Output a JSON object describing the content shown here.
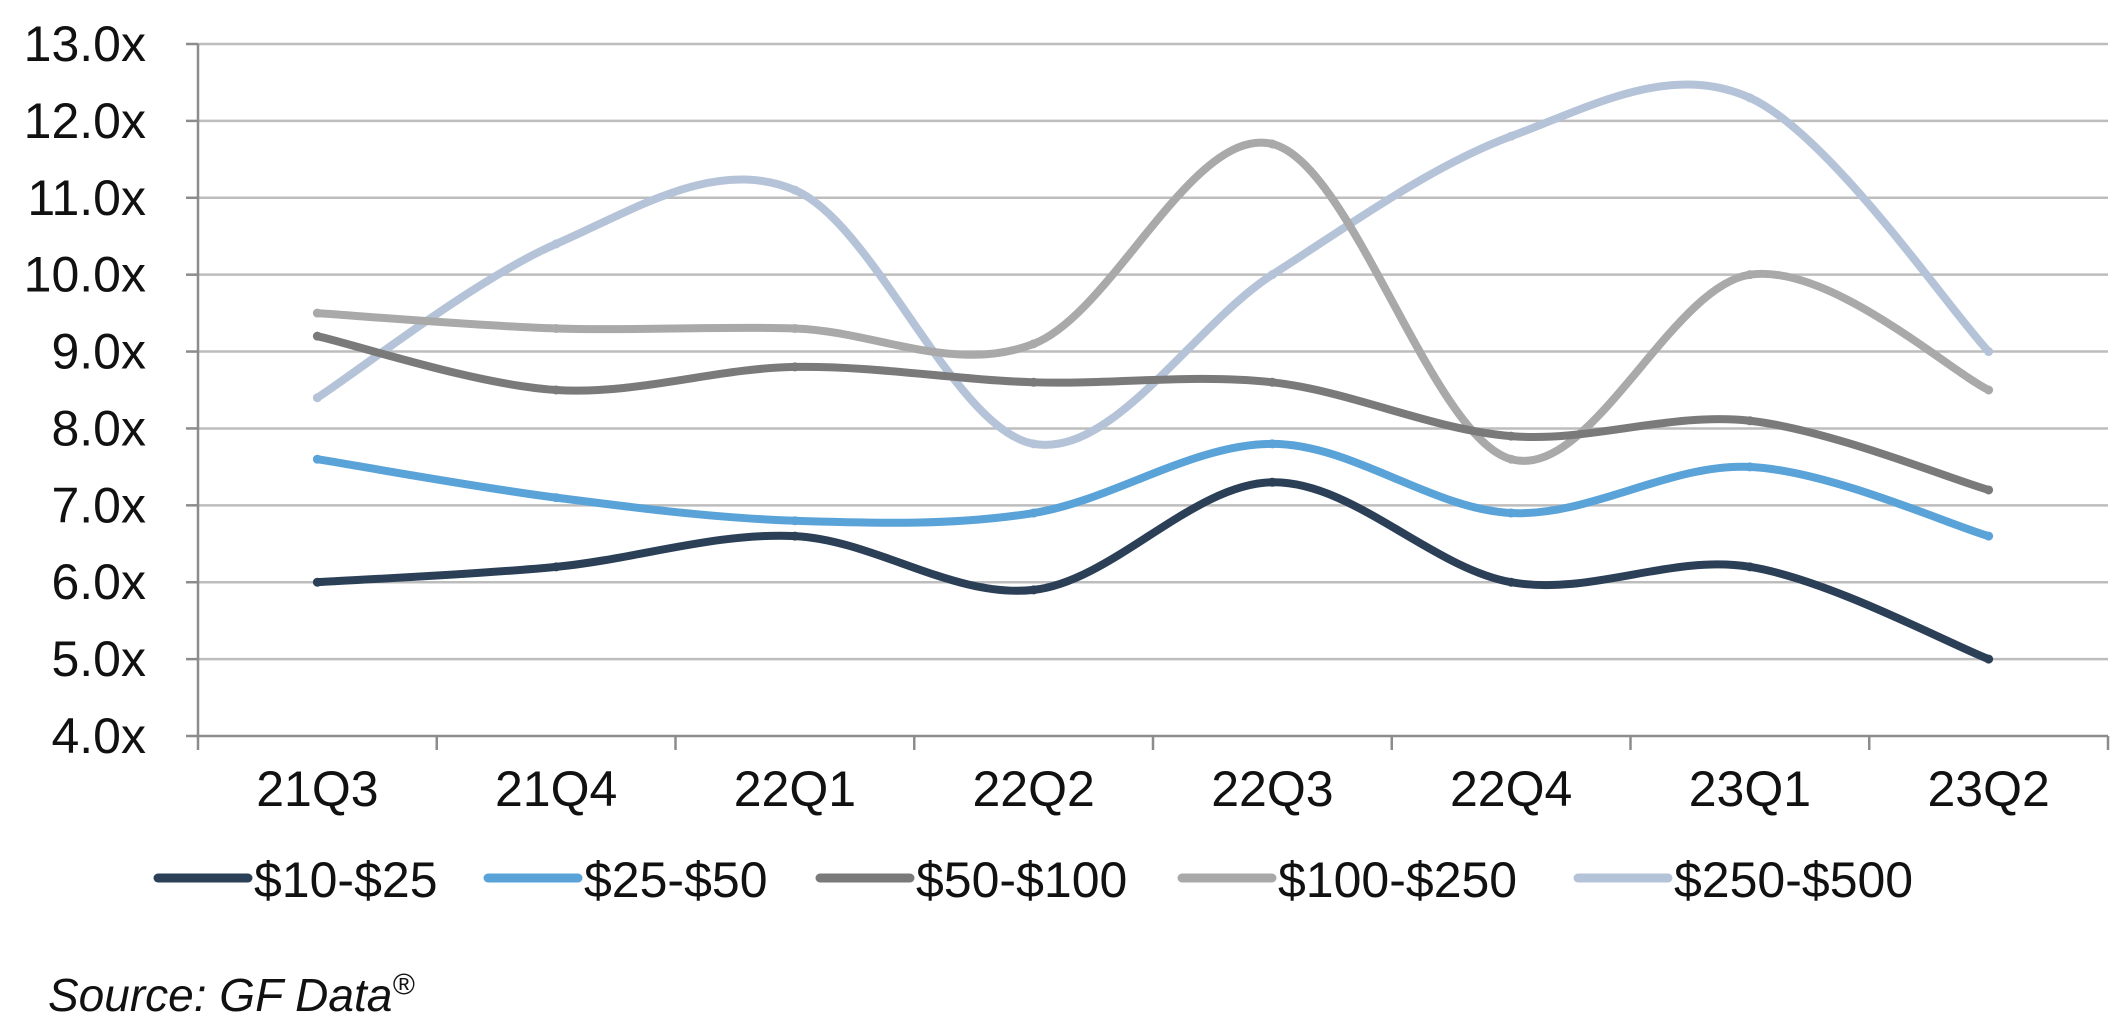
{
  "chart_data": {
    "type": "line",
    "title": "",
    "xlabel": "",
    "ylabel": "",
    "categories": [
      "21Q3",
      "21Q4",
      "22Q1",
      "22Q2",
      "22Q3",
      "22Q4",
      "23Q1",
      "23Q2"
    ],
    "ylim": [
      4.0,
      13.0
    ],
    "yticks": [
      "4.0x",
      "5.0x",
      "6.0x",
      "7.0x",
      "8.0x",
      "9.0x",
      "10.0x",
      "11.0x",
      "12.0x",
      "13.0x"
    ],
    "grid": true,
    "legend_position": "bottom",
    "smooth": true,
    "series": [
      {
        "name": "$10-$25",
        "color": "#2b3f57",
        "values": [
          6.0,
          6.2,
          6.6,
          5.9,
          7.3,
          6.0,
          6.2,
          5.0
        ]
      },
      {
        "name": "$25-$50",
        "color": "#5aa3d8",
        "values": [
          7.6,
          7.1,
          6.8,
          6.9,
          7.8,
          6.9,
          7.5,
          6.6
        ]
      },
      {
        "name": "$50-$100",
        "color": "#7a7a7a",
        "values": [
          9.2,
          8.5,
          8.8,
          8.6,
          8.6,
          7.9,
          8.1,
          7.2
        ]
      },
      {
        "name": "$100-$250",
        "color": "#a9a9a9",
        "values": [
          9.5,
          9.3,
          9.3,
          9.1,
          11.7,
          7.6,
          10.0,
          8.5
        ]
      },
      {
        "name": "$250-$500",
        "color": "#b5c3d8",
        "values": [
          8.4,
          10.4,
          11.1,
          7.8,
          10.0,
          11.8,
          12.3,
          9.0
        ]
      }
    ]
  },
  "source": {
    "prefix": "Source: GF Data",
    "mark": "®"
  }
}
